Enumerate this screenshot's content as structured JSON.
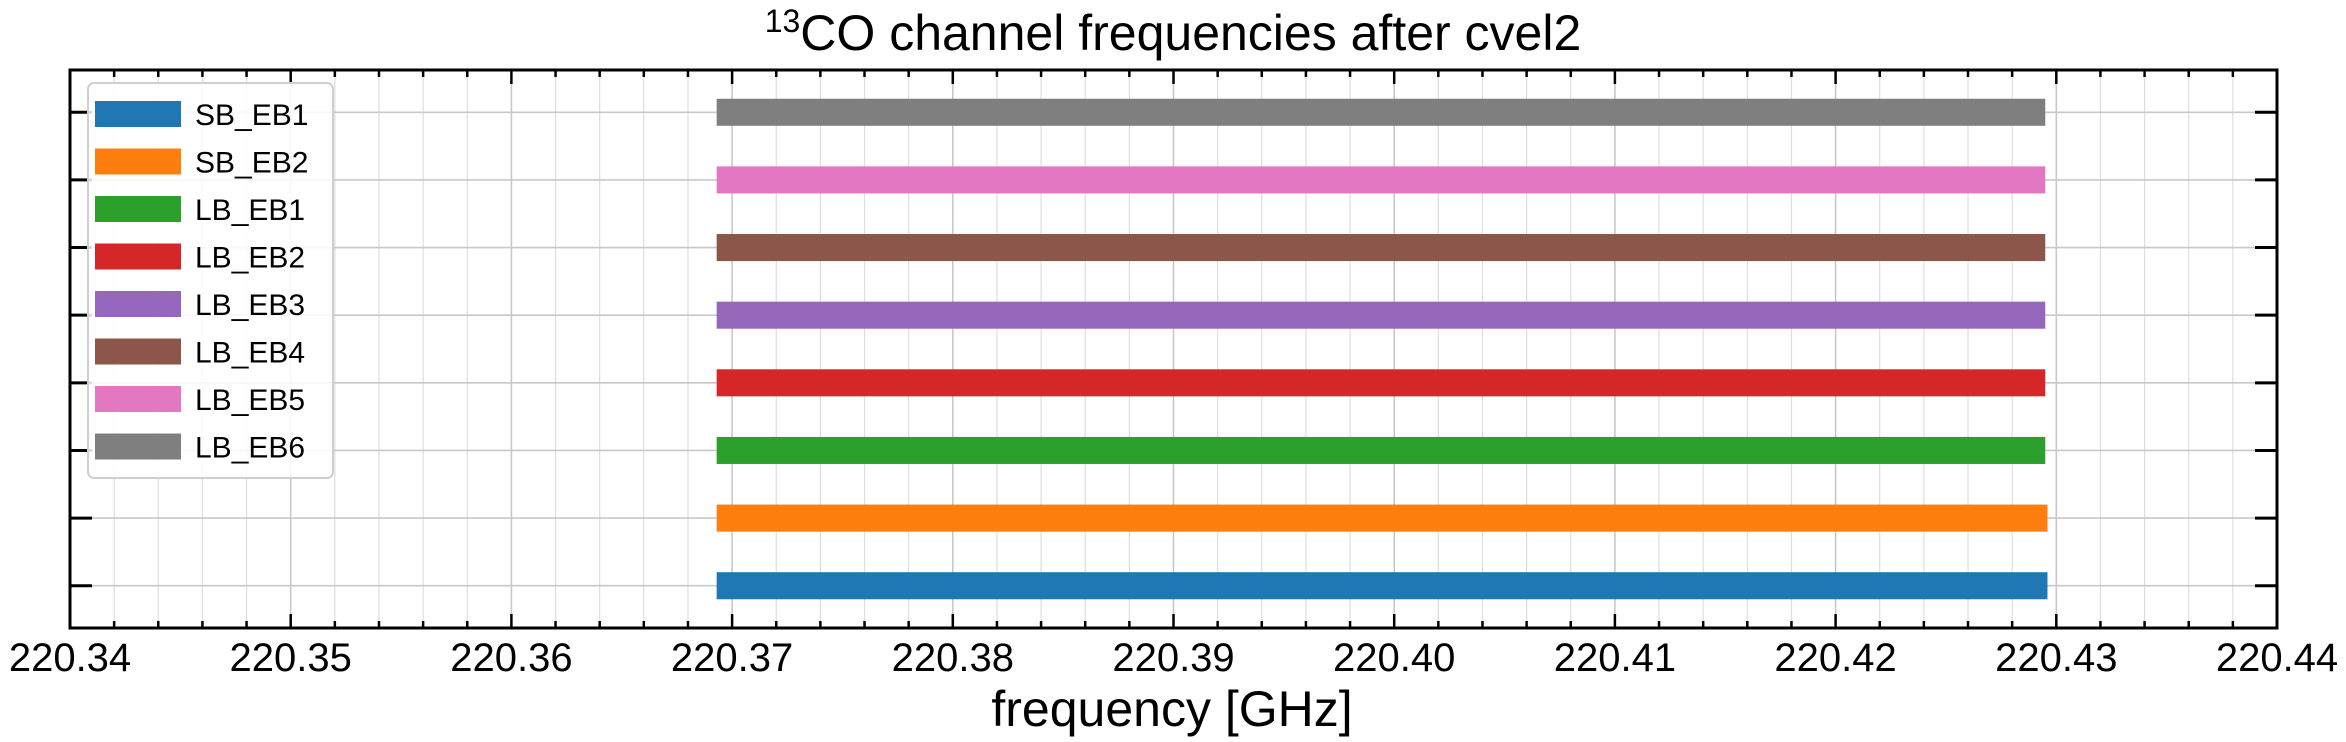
{
  "chart_data": {
    "type": "bar",
    "orientation": "horizontal-range",
    "title_main": "CO channel frequencies after cvel2",
    "title_superscript": "13",
    "xlabel": "frequency [GHz]",
    "ylabel": "",
    "xlim": [
      220.34,
      220.44
    ],
    "x_ticks": [
      "220.34",
      "220.35",
      "220.36",
      "220.37",
      "220.38",
      "220.39",
      "220.40",
      "220.41",
      "220.42",
      "220.43",
      "220.44"
    ],
    "x_minor_step": 0.002,
    "grid": true,
    "legend_placement": "upper-left",
    "series": [
      {
        "name": "SB_EB1",
        "color": "#1f77b4",
        "start": 220.3693,
        "end": 220.4296
      },
      {
        "name": "SB_EB2",
        "color": "#ff7f0e",
        "start": 220.3693,
        "end": 220.4296
      },
      {
        "name": "LB_EB1",
        "color": "#2ca02c",
        "start": 220.3693,
        "end": 220.4295
      },
      {
        "name": "LB_EB2",
        "color": "#d62728",
        "start": 220.3693,
        "end": 220.4295
      },
      {
        "name": "LB_EB3",
        "color": "#9467bd",
        "start": 220.3693,
        "end": 220.4295
      },
      {
        "name": "LB_EB4",
        "color": "#8c564b",
        "start": 220.3693,
        "end": 220.4295
      },
      {
        "name": "LB_EB5",
        "color": "#e377c2",
        "start": 220.3693,
        "end": 220.4295
      },
      {
        "name": "LB_EB6",
        "color": "#7f7f7f",
        "start": 220.3693,
        "end": 220.4295
      }
    ]
  }
}
